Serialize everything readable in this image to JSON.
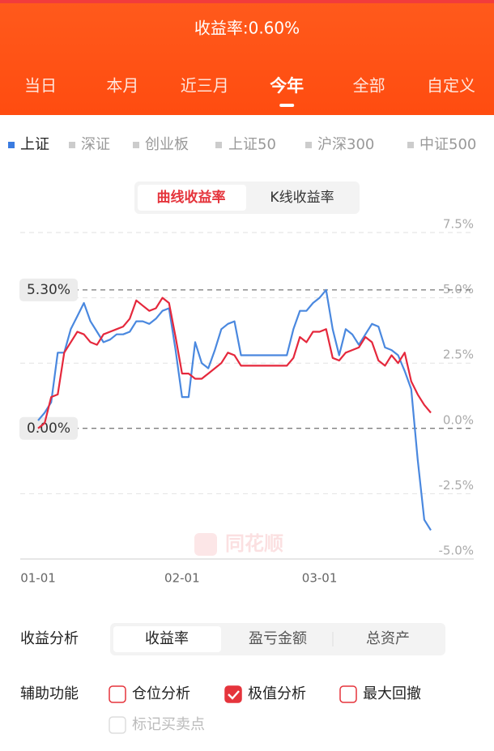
{
  "header": {
    "title": "收益率:0.60%"
  },
  "tabs": {
    "items": [
      "当日",
      "本月",
      "近三月",
      "今年",
      "全部",
      "自定义"
    ],
    "active": 3
  },
  "indices": {
    "items": [
      "上证",
      "深证",
      "创业板",
      "上证50",
      "沪深300",
      "中证500"
    ],
    "active": 0
  },
  "chart_toggle": {
    "items": [
      "曲线收益率",
      "K线收益率"
    ],
    "active": 0
  },
  "chart_data": {
    "type": "line",
    "categories": [
      "01-01",
      null,
      null,
      null,
      null,
      null,
      null,
      null,
      null,
      null,
      null,
      null,
      null,
      null,
      null,
      null,
      null,
      null,
      null,
      null,
      null,
      null,
      "02-01",
      null,
      null,
      null,
      null,
      null,
      null,
      null,
      null,
      null,
      null,
      null,
      null,
      null,
      null,
      null,
      null,
      null,
      null,
      null,
      null,
      "03-01",
      null,
      null,
      null,
      null,
      null,
      null,
      null,
      null,
      null,
      null,
      null,
      null,
      null,
      null,
      null,
      null,
      null
    ],
    "series": [
      {
        "color": "#4a88df",
        "values": [
          0.3,
          0.6,
          1.0,
          2.9,
          2.9,
          3.8,
          4.3,
          4.8,
          4.1,
          3.7,
          3.3,
          3.4,
          3.6,
          3.6,
          3.7,
          4.1,
          4.1,
          4.0,
          4.2,
          4.5,
          4.6,
          3.0,
          1.2,
          1.2,
          3.3,
          2.5,
          2.3,
          3.0,
          3.8,
          4.0,
          4.1,
          2.8,
          2.8,
          2.8,
          2.8,
          2.8,
          2.8,
          2.8,
          2.8,
          3.8,
          4.5,
          4.5,
          4.8,
          5.0,
          5.3,
          3.8,
          2.8,
          3.8,
          3.6,
          3.2,
          3.6,
          4.0,
          3.9,
          3.1,
          3.0,
          2.8,
          2.2,
          1.5,
          -1.2,
          -3.5,
          -3.9
        ]
      },
      {
        "color": "#e5283c",
        "values": [
          0.0,
          0.2,
          1.2,
          1.3,
          2.9,
          3.3,
          3.7,
          3.6,
          3.3,
          3.2,
          3.6,
          3.7,
          3.8,
          3.9,
          4.2,
          4.9,
          4.7,
          4.5,
          4.6,
          5.0,
          4.8,
          3.5,
          2.1,
          2.1,
          1.9,
          1.9,
          2.1,
          2.3,
          2.5,
          2.9,
          2.8,
          2.4,
          2.4,
          2.4,
          2.4,
          2.4,
          2.4,
          2.4,
          2.4,
          2.7,
          3.5,
          3.3,
          3.7,
          3.7,
          3.8,
          2.7,
          2.6,
          2.9,
          3.0,
          3.1,
          3.5,
          3.3,
          2.6,
          2.4,
          2.8,
          2.5,
          2.9,
          1.8,
          1.3,
          0.9,
          0.6
        ]
      }
    ],
    "ylim": [
      -5,
      7.5
    ],
    "yticks": [
      {
        "value": 7.5,
        "label": "7.5%"
      },
      {
        "value": 5,
        "label": "5.0%"
      },
      {
        "value": 2.5,
        "label": "2.5%"
      },
      {
        "value": 0,
        "label": "0.0%"
      },
      {
        "value": -2.5,
        "label": "-2.5%"
      },
      {
        "value": -5,
        "label": "-5.0%"
      }
    ],
    "grid": true,
    "annotations": [
      {
        "value": 5.3,
        "label": "5.30%"
      },
      {
        "value": 0,
        "label": "0.00%"
      }
    ],
    "watermark": "同花顺"
  },
  "analysis": {
    "label": "收益分析",
    "options": [
      "收益率",
      "盈亏金额",
      "总资产"
    ],
    "active": 0
  },
  "tools": {
    "label": "辅助功能",
    "options": [
      {
        "label": "仓位分析",
        "checked": false,
        "enabled": true
      },
      {
        "label": "极值分析",
        "checked": true,
        "enabled": true
      },
      {
        "label": "最大回撤",
        "checked": false,
        "enabled": true
      },
      {
        "label": "标记买卖点",
        "checked": false,
        "enabled": false
      }
    ]
  }
}
